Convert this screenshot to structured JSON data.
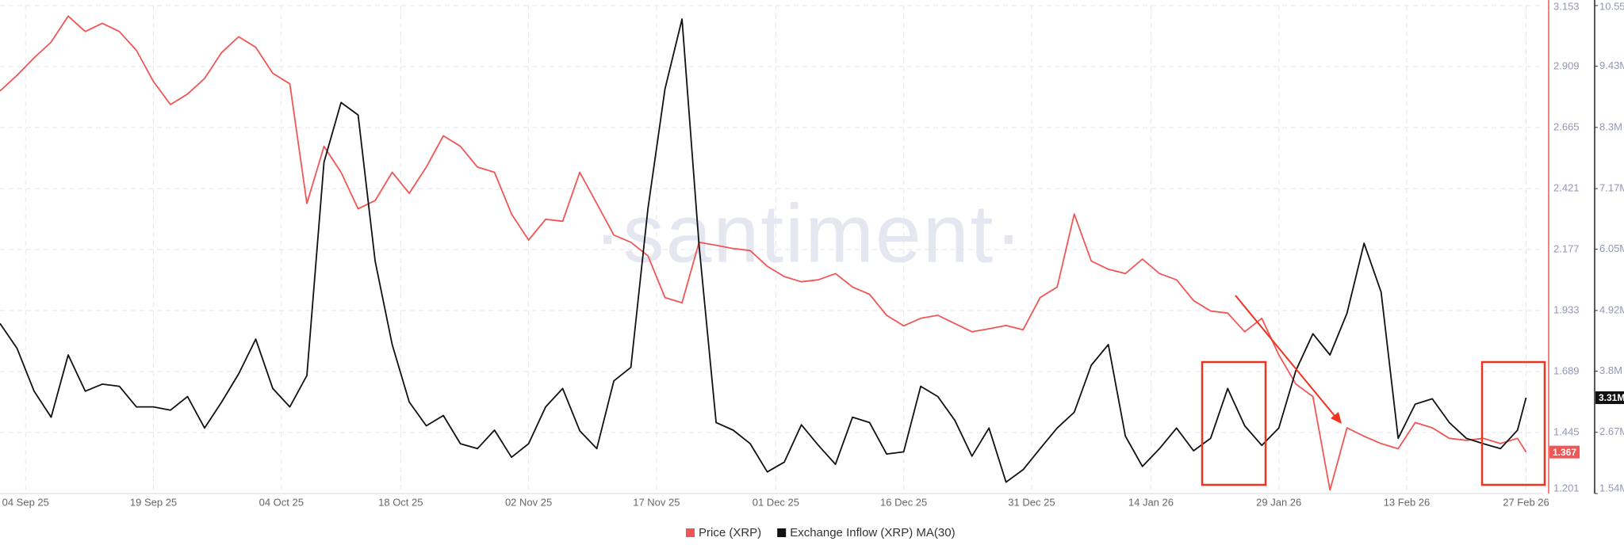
{
  "chart_data": {
    "type": "line",
    "watermark": "·santiment·",
    "x": [
      "2025-09-01",
      "2025-09-03",
      "2025-09-05",
      "2025-09-07",
      "2025-09-09",
      "2025-09-11",
      "2025-09-13",
      "2025-09-15",
      "2025-09-17",
      "2025-09-19",
      "2025-09-21",
      "2025-09-23",
      "2025-09-25",
      "2025-09-27",
      "2025-09-29",
      "2025-10-01",
      "2025-10-03",
      "2025-10-05",
      "2025-10-07",
      "2025-10-09",
      "2025-10-11",
      "2025-10-13",
      "2025-10-15",
      "2025-10-17",
      "2025-10-19",
      "2025-10-21",
      "2025-10-23",
      "2025-10-25",
      "2025-10-27",
      "2025-10-29",
      "2025-10-31",
      "2025-11-02",
      "2025-11-04",
      "2025-11-06",
      "2025-11-08",
      "2025-11-10",
      "2025-11-12",
      "2025-11-14",
      "2025-11-16",
      "2025-11-18",
      "2025-11-20",
      "2025-11-22",
      "2025-11-24",
      "2025-11-26",
      "2025-11-28",
      "2025-11-30",
      "2025-12-02",
      "2025-12-04",
      "2025-12-06",
      "2025-12-08",
      "2025-12-10",
      "2025-12-12",
      "2025-12-14",
      "2025-12-16",
      "2025-12-18",
      "2025-12-20",
      "2025-12-22",
      "2025-12-24",
      "2025-12-26",
      "2025-12-28",
      "2025-12-30",
      "2026-01-01",
      "2026-01-03",
      "2026-01-05",
      "2026-01-07",
      "2026-01-09",
      "2026-01-11",
      "2026-01-13",
      "2026-01-15",
      "2026-01-17",
      "2026-01-19",
      "2026-01-21",
      "2026-01-23",
      "2026-01-25",
      "2026-01-27",
      "2026-01-29",
      "2026-01-31",
      "2026-02-02",
      "2026-02-04",
      "2026-02-06",
      "2026-02-08",
      "2026-02-10",
      "2026-02-12",
      "2026-02-14",
      "2026-02-16",
      "2026-02-18",
      "2026-02-20",
      "2026-02-22",
      "2026-02-24",
      "2026-02-26",
      "2026-02-27"
    ],
    "xlim": [
      "2025-09-01",
      "2026-03-01"
    ],
    "xticks": [
      {
        "value": "2025-09-04",
        "label": "04 Sep 25"
      },
      {
        "value": "2025-09-19",
        "label": "19 Sep 25"
      },
      {
        "value": "2025-10-04",
        "label": "04 Oct 25"
      },
      {
        "value": "2025-10-18",
        "label": "18 Oct 25"
      },
      {
        "value": "2025-11-02",
        "label": "02 Nov 25"
      },
      {
        "value": "2025-11-17",
        "label": "17 Nov 25"
      },
      {
        "value": "2025-12-01",
        "label": "01 Dec 25"
      },
      {
        "value": "2025-12-16",
        "label": "16 Dec 25"
      },
      {
        "value": "2025-12-31",
        "label": "31 Dec 25"
      },
      {
        "value": "2026-01-14",
        "label": "14 Jan 26"
      },
      {
        "value": "2026-01-29",
        "label": "29 Jan 26"
      },
      {
        "value": "2026-02-13",
        "label": "13 Feb 26"
      },
      {
        "value": "2026-02-27",
        "label": "27 Feb 26"
      }
    ],
    "ylim": [
      1.201,
      3.153
    ],
    "yticks": [
      1.201,
      1.445,
      1.689,
      1.933,
      2.177,
      2.421,
      2.665,
      2.909,
      3.153
    ],
    "y2lim": [
      1.54,
      10.55
    ],
    "y2ticks": [
      {
        "value": 1.54,
        "label": "1.54M"
      },
      {
        "value": 2.67,
        "label": "2.67M"
      },
      {
        "value": 3.8,
        "label": "3.8M"
      },
      {
        "value": 4.92,
        "label": "4.92M"
      },
      {
        "value": 6.05,
        "label": "6.05M"
      },
      {
        "value": 7.17,
        "label": "7.17M"
      },
      {
        "value": 8.3,
        "label": "8.3M"
      },
      {
        "value": 9.43,
        "label": "9.43M"
      },
      {
        "value": 10.55,
        "label": "10.55M"
      }
    ],
    "grid": true,
    "series": [
      {
        "name": "Price (XRP)",
        "color": "#f05656",
        "axis": "y",
        "values": [
          2.811,
          2.874,
          2.944,
          3.007,
          3.111,
          3.049,
          3.082,
          3.049,
          2.974,
          2.849,
          2.757,
          2.799,
          2.861,
          2.965,
          3.028,
          2.986,
          2.882,
          2.84,
          2.361,
          2.59,
          2.486,
          2.34,
          2.373,
          2.486,
          2.402,
          2.507,
          2.632,
          2.59,
          2.507,
          2.486,
          2.319,
          2.215,
          2.298,
          2.29,
          2.486,
          2.361,
          2.235,
          2.206,
          2.152,
          1.985,
          1.964,
          2.206,
          2.194,
          2.181,
          2.173,
          2.11,
          2.069,
          2.048,
          2.056,
          2.081,
          2.027,
          1.998,
          1.914,
          1.872,
          1.902,
          1.914,
          1.881,
          1.848,
          1.86,
          1.873,
          1.856,
          1.985,
          2.027,
          2.319,
          2.131,
          2.098,
          2.081,
          2.139,
          2.081,
          2.056,
          1.973,
          1.931,
          1.923,
          1.848,
          1.902,
          1.756,
          1.639,
          1.589,
          1.215,
          1.464,
          1.43,
          1.401,
          1.38,
          1.485,
          1.464,
          1.422,
          1.414,
          1.422,
          1.401,
          1.422,
          1.367
        ]
      },
      {
        "name": "Exchange Inflow (XRP) MA(30)",
        "color": "#111111",
        "axis": "y2",
        "last_value_label": "3.31M",
        "values": [
          4.68,
          4.22,
          3.43,
          2.95,
          4.1,
          3.43,
          3.56,
          3.52,
          3.14,
          3.14,
          3.08,
          3.33,
          2.75,
          3.23,
          3.75,
          4.39,
          3.48,
          3.14,
          3.72,
          7.66,
          8.76,
          8.53,
          5.83,
          4.29,
          3.23,
          2.79,
          2.98,
          2.46,
          2.37,
          2.71,
          2.21,
          2.46,
          3.14,
          3.48,
          2.7,
          2.37,
          3.62,
          3.87,
          6.8,
          9.01,
          10.3,
          6.12,
          2.85,
          2.71,
          2.46,
          1.94,
          2.12,
          2.81,
          2.43,
          2.08,
          2.95,
          2.85,
          2.27,
          2.31,
          3.52,
          3.33,
          2.89,
          2.23,
          2.75,
          1.75,
          1.98,
          2.37,
          2.75,
          3.04,
          3.91,
          4.29,
          2.6,
          2.04,
          2.37,
          2.75,
          2.33,
          2.56,
          3.48,
          2.79,
          2.43,
          2.75,
          3.81,
          4.49,
          4.1,
          4.87,
          6.16,
          5.26,
          2.56,
          3.19,
          3.29,
          2.85,
          2.56,
          2.46,
          2.37,
          2.71,
          3.31
        ]
      }
    ]
  }
}
